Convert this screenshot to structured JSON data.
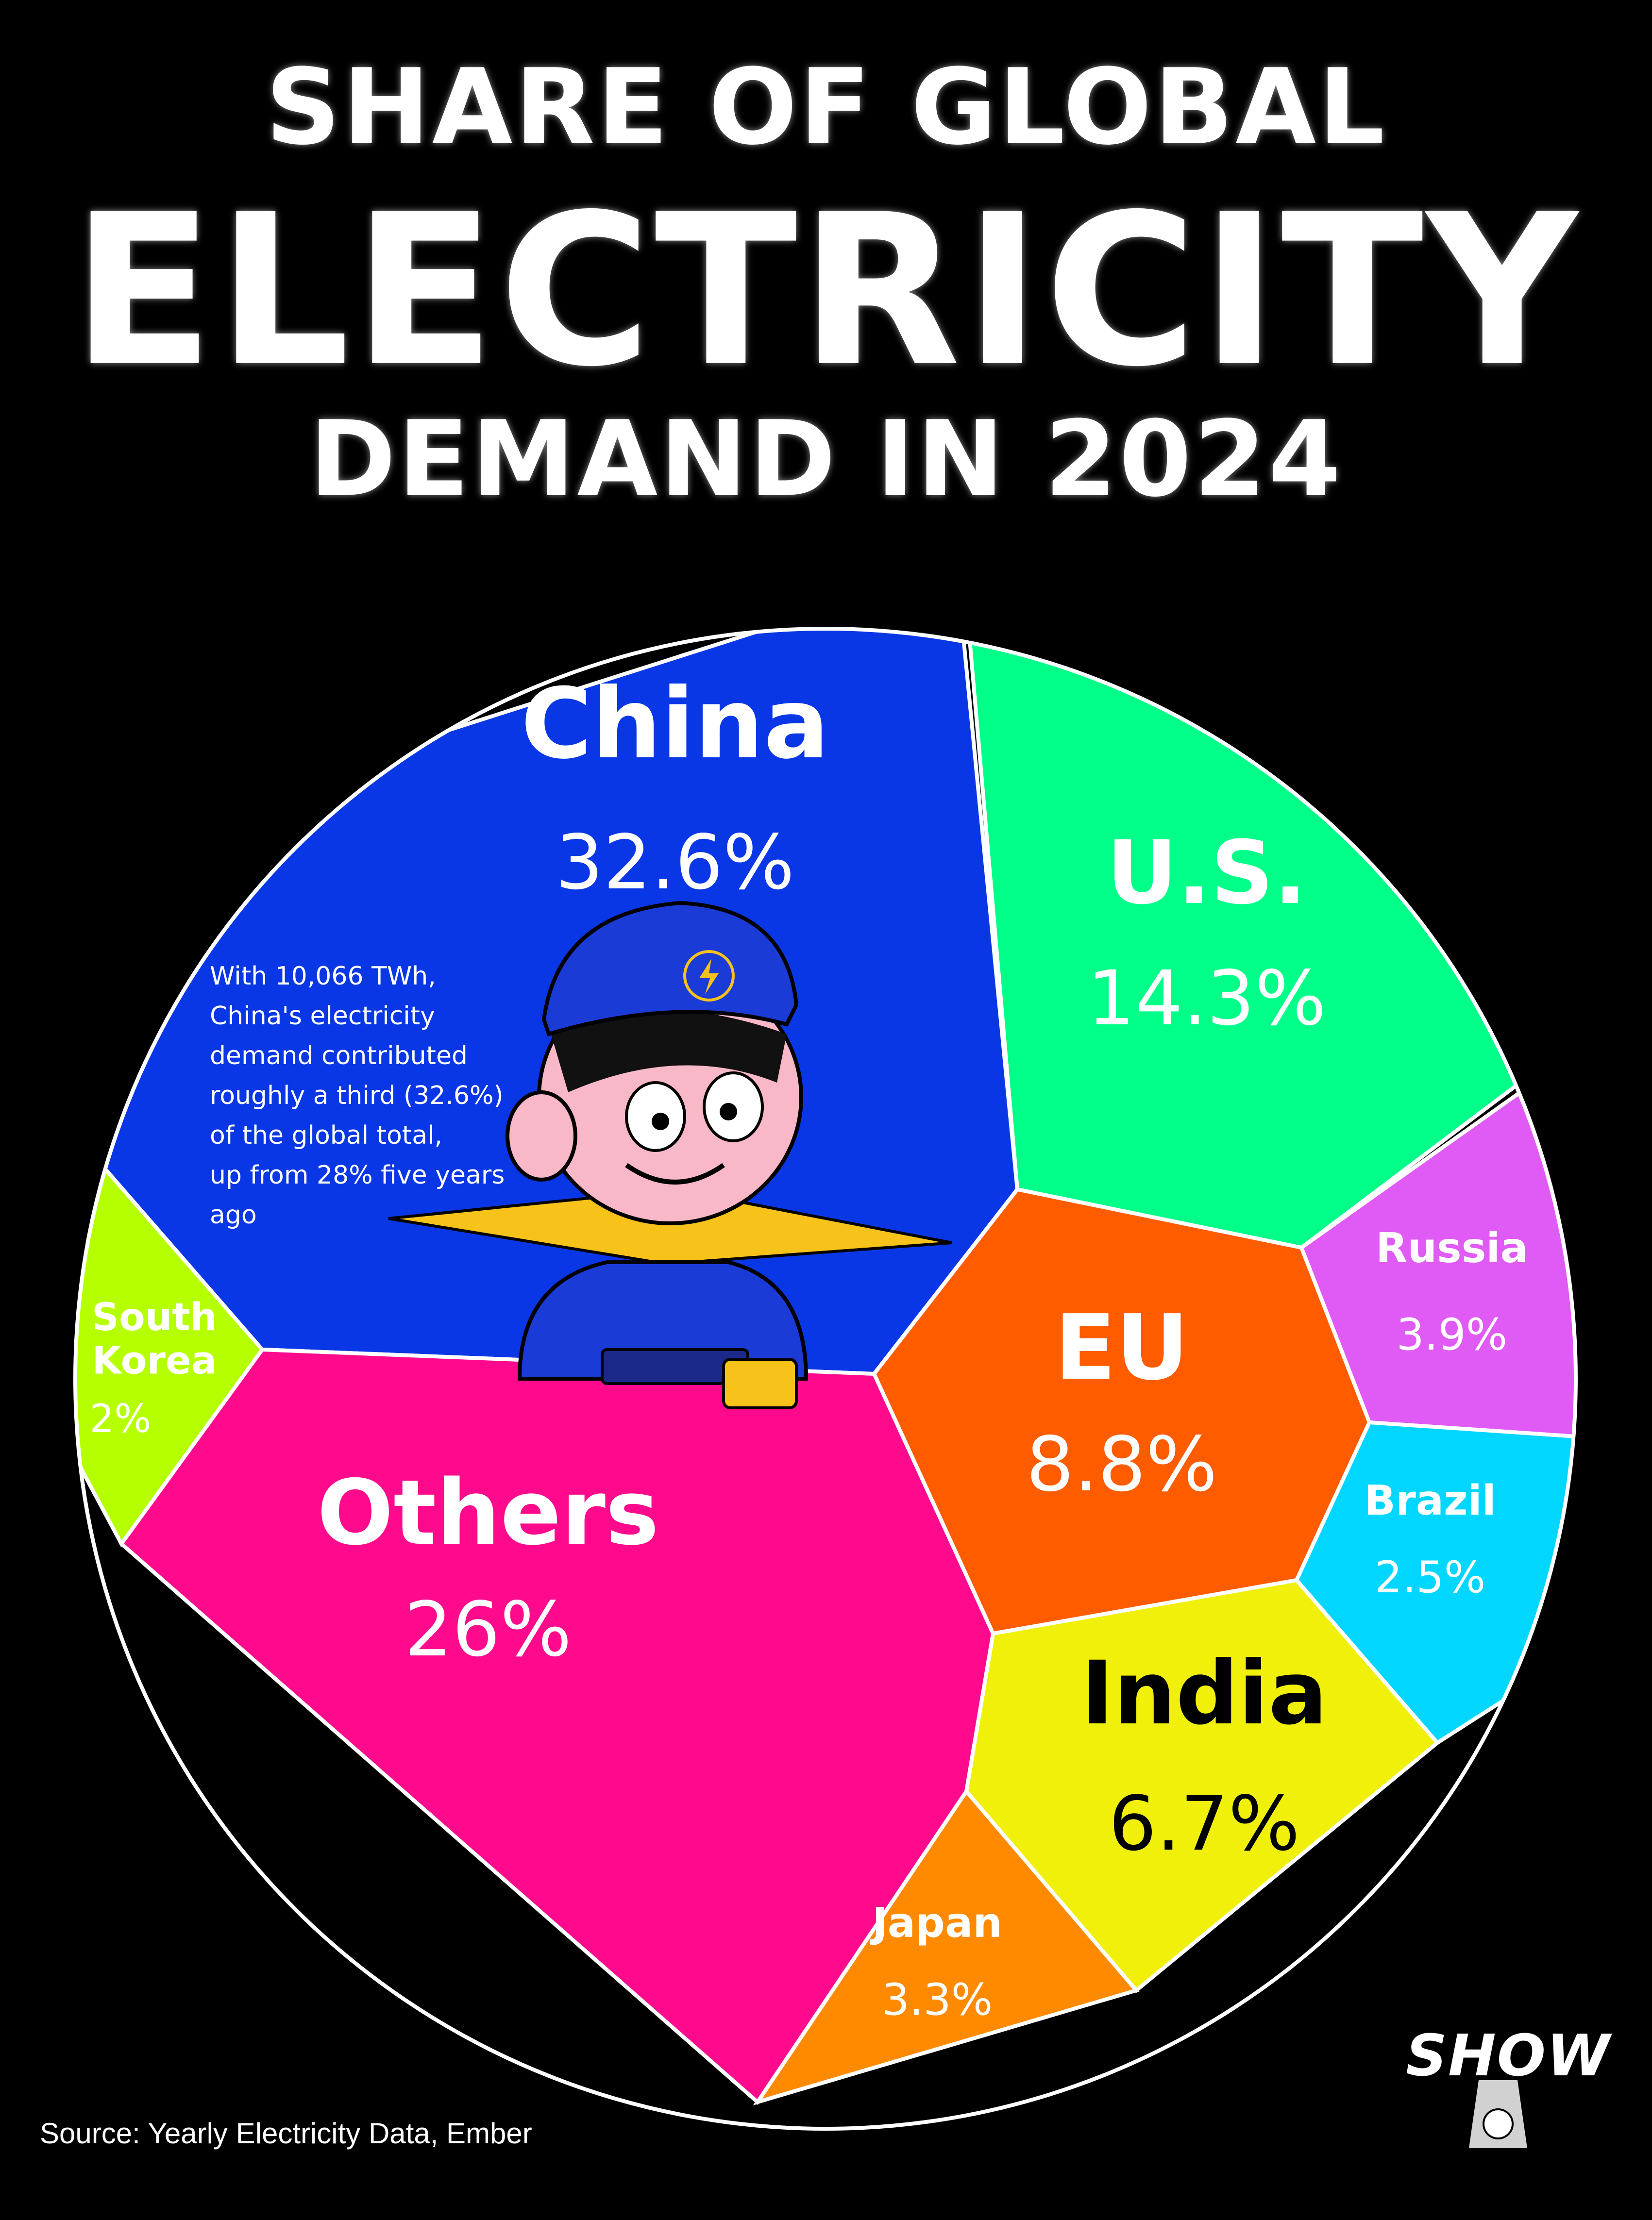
{
  "title": {
    "line1": "SHARE OF GLOBAL",
    "line2": "ELECTRICITY",
    "line3": "DEMAND IN 2024"
  },
  "note": [
    "With 10,066 TWh,",
    "China's electricity",
    "demand contributed",
    "roughly a third (32.6%)",
    "of the global total,",
    "up from 28% five years ago"
  ],
  "source": "Source: Yearly Electricity Data, Ember",
  "logo": "SHOW",
  "chart_data": {
    "type": "voronoi-treemap",
    "segments": [
      {
        "name": "China",
        "value": 32.6,
        "label": "32.6%",
        "color": "#0a37e6"
      },
      {
        "name": "U.S.",
        "value": 14.3,
        "label": "14.3%",
        "color": "#00ff88"
      },
      {
        "name": "Russia",
        "value": 3.9,
        "label": "3.9%",
        "color": "#e05af5"
      },
      {
        "name": "EU",
        "value": 8.8,
        "label": "8.8%",
        "color": "#ff5c00"
      },
      {
        "name": "Brazil",
        "value": 2.5,
        "label": "2.5%",
        "color": "#00d6ff"
      },
      {
        "name": "India",
        "value": 6.7,
        "label": "6.7%",
        "color": "#f0f00a"
      },
      {
        "name": "Japan",
        "value": 3.3,
        "label": "3.3%",
        "color": "#ff8a00"
      },
      {
        "name": "Others",
        "value": 26,
        "label": "26%",
        "color": "#ff0a8c"
      },
      {
        "name": "South Korea",
        "value": 2,
        "label": "2%",
        "color": "#b5ff00"
      }
    ]
  }
}
